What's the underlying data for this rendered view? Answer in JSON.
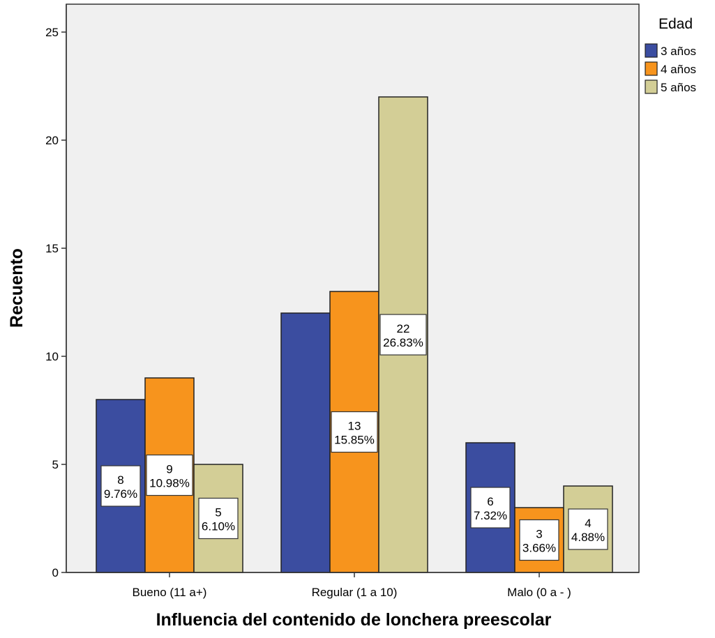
{
  "chart_data": {
    "type": "bar",
    "xlabel": "Influencia del contenido de lonchera preescolar",
    "ylabel": "Recuento",
    "categories": [
      "Bueno (11 a+)",
      "Regular (1 a 10)",
      "Malo (0 a - )"
    ],
    "ylim": [
      0,
      26
    ],
    "yticks": [
      "0",
      "5",
      "10",
      "15",
      "20",
      "25"
    ],
    "legend_title": "Edad",
    "legend_position": "top-right",
    "grid": false,
    "series": [
      {
        "name": "3 años",
        "color": "#3b4da0",
        "values": [
          8,
          12,
          6
        ],
        "labels": [
          [
            "8",
            "9.76%"
          ],
          null,
          [
            "6",
            "7.32%"
          ]
        ]
      },
      {
        "name": "4 años",
        "color": "#f7941d",
        "values": [
          9,
          13,
          3
        ],
        "labels": [
          [
            "9",
            "10.98%"
          ],
          [
            "13",
            "15.85%"
          ],
          [
            "3",
            "3.66%"
          ]
        ]
      },
      {
        "name": "5 años",
        "color": "#d3ce96",
        "values": [
          5,
          22,
          4
        ],
        "labels": [
          [
            "5",
            "6.10%"
          ],
          [
            "22",
            "26.83%"
          ],
          [
            "4",
            "4.88%"
          ]
        ]
      }
    ],
    "plot_background": "#f0f0f0"
  }
}
